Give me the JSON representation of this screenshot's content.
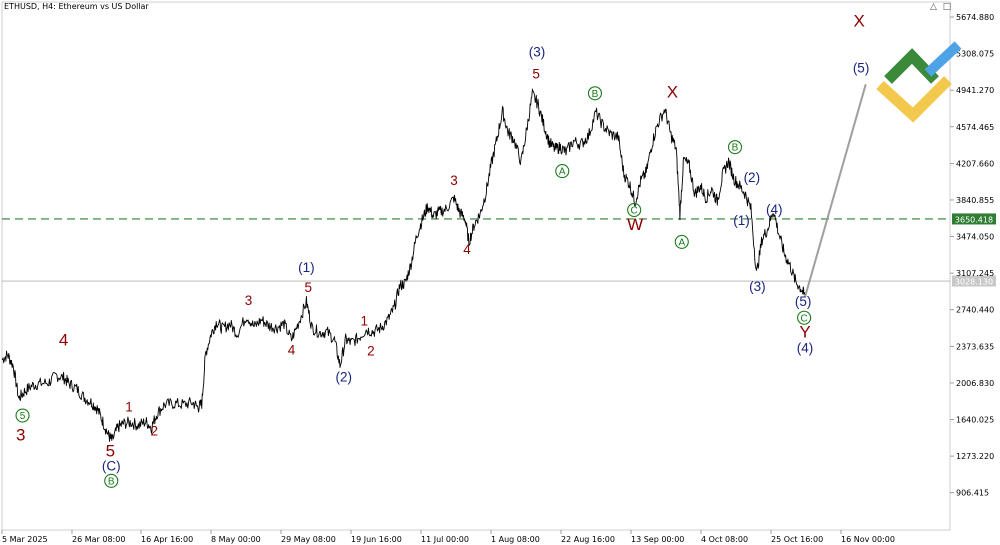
{
  "header": {
    "symbol_label": "ETHUSD, H4:  Ethereum vs US Dollar"
  },
  "corner_icons": [
    "graduation-cap-icon",
    "trading-icon"
  ],
  "colors": {
    "wave_red": "#8b0000",
    "wave_blue": "#1a237e",
    "wave_green": "#1b7a1b",
    "hline_green": "#2e7d32",
    "hline_gray": "#b0b0b0",
    "projection": "#9e9e9e",
    "logo_green": "#3a8a3a",
    "logo_yellow": "#f2c94c",
    "logo_blue": "#4da3e6"
  },
  "chart_data": {
    "type": "line",
    "price_axis": {
      "ticks": [
        5674.88,
        5308.075,
        4941.27,
        4574.465,
        4207.66,
        3840.855,
        3474.05,
        3107.245,
        2740.44,
        2373.635,
        2006.83,
        1640.025,
        1273.22,
        906.415
      ],
      "tick_labels": [
        "5674.880",
        "5308.075",
        "4941.270",
        "4574.465",
        "4207.660",
        "3840.855",
        "3474.050",
        "3107.245",
        "2740.440",
        "2373.635",
        "2006.830",
        "1640.025",
        "1273.220",
        "906.415"
      ],
      "range": [
        700,
        5800
      ]
    },
    "time_axis": {
      "tick_labels": [
        "5 Mar 2025",
        "26 Mar 08:00",
        "16 Apr 16:00",
        "8 May 00:00",
        "29 May 08:00",
        "19 Jun 16:00",
        "11 Jul 00:00",
        "1 Aug 08:00",
        "22 Aug 16:00",
        "13 Sep 00:00",
        "4 Oct 08:00",
        "25 Oct 16:00",
        "16 Nov 00:00"
      ]
    },
    "horizontal_lines": [
      {
        "price": 3650.418,
        "label": "3650.418",
        "style": "dashed",
        "color": "#2e7d32"
      },
      {
        "price": 3028.13,
        "label": "3028.130",
        "style": "solid",
        "color": "#b0b0b0"
      }
    ],
    "projection": {
      "from": {
        "t": 0.86,
        "price": 2870
      },
      "to": {
        "t": 0.925,
        "price": 5000
      }
    },
    "series": [
      {
        "values": [
          [
            0.0,
            2240
          ],
          [
            0.006,
            2290
          ],
          [
            0.012,
            2180
          ],
          [
            0.018,
            1850
          ],
          [
            0.024,
            1920
          ],
          [
            0.032,
            1980
          ],
          [
            0.04,
            2000
          ],
          [
            0.05,
            2010
          ],
          [
            0.058,
            2080
          ],
          [
            0.066,
            2060
          ],
          [
            0.072,
            2000
          ],
          [
            0.08,
            1950
          ],
          [
            0.088,
            1860
          ],
          [
            0.096,
            1810
          ],
          [
            0.102,
            1750
          ],
          [
            0.108,
            1620
          ],
          [
            0.114,
            1480
          ],
          [
            0.118,
            1430
          ],
          [
            0.124,
            1560
          ],
          [
            0.13,
            1600
          ],
          [
            0.138,
            1610
          ],
          [
            0.146,
            1580
          ],
          [
            0.154,
            1620
          ],
          [
            0.16,
            1560
          ],
          [
            0.166,
            1700
          ],
          [
            0.174,
            1790
          ],
          [
            0.184,
            1800
          ],
          [
            0.194,
            1790
          ],
          [
            0.204,
            1810
          ],
          [
            0.21,
            1760
          ],
          [
            0.214,
            1800
          ],
          [
            0.218,
            2300
          ],
          [
            0.224,
            2500
          ],
          [
            0.23,
            2620
          ],
          [
            0.236,
            2550
          ],
          [
            0.244,
            2600
          ],
          [
            0.252,
            2500
          ],
          [
            0.262,
            2680
          ],
          [
            0.27,
            2570
          ],
          [
            0.278,
            2640
          ],
          [
            0.286,
            2580
          ],
          [
            0.294,
            2560
          ],
          [
            0.302,
            2600
          ],
          [
            0.31,
            2440
          ],
          [
            0.318,
            2620
          ],
          [
            0.326,
            2820
          ],
          [
            0.332,
            2560
          ],
          [
            0.34,
            2510
          ],
          [
            0.348,
            2520
          ],
          [
            0.356,
            2440
          ],
          [
            0.362,
            2180
          ],
          [
            0.368,
            2440
          ],
          [
            0.374,
            2410
          ],
          [
            0.382,
            2460
          ],
          [
            0.39,
            2540
          ],
          [
            0.398,
            2520
          ],
          [
            0.406,
            2560
          ],
          [
            0.414,
            2650
          ],
          [
            0.42,
            2760
          ],
          [
            0.426,
            2980
          ],
          [
            0.432,
            3010
          ],
          [
            0.438,
            3200
          ],
          [
            0.444,
            3480
          ],
          [
            0.45,
            3640
          ],
          [
            0.456,
            3780
          ],
          [
            0.462,
            3680
          ],
          [
            0.468,
            3720
          ],
          [
            0.476,
            3750
          ],
          [
            0.484,
            3860
          ],
          [
            0.49,
            3720
          ],
          [
            0.496,
            3650
          ],
          [
            0.5,
            3420
          ],
          [
            0.506,
            3600
          ],
          [
            0.512,
            3700
          ],
          [
            0.518,
            3900
          ],
          [
            0.524,
            4200
          ],
          [
            0.53,
            4450
          ],
          [
            0.536,
            4730
          ],
          [
            0.542,
            4520
          ],
          [
            0.548,
            4450
          ],
          [
            0.556,
            4220
          ],
          [
            0.562,
            4550
          ],
          [
            0.568,
            4900
          ],
          [
            0.574,
            4800
          ],
          [
            0.58,
            4600
          ],
          [
            0.586,
            4420
          ],
          [
            0.592,
            4350
          ],
          [
            0.598,
            4370
          ],
          [
            0.604,
            4320
          ],
          [
            0.612,
            4430
          ],
          [
            0.62,
            4400
          ],
          [
            0.628,
            4480
          ],
          [
            0.636,
            4720
          ],
          [
            0.644,
            4580
          ],
          [
            0.652,
            4500
          ],
          [
            0.66,
            4470
          ],
          [
            0.666,
            4100
          ],
          [
            0.672,
            4000
          ],
          [
            0.678,
            3820
          ],
          [
            0.684,
            4030
          ],
          [
            0.69,
            4120
          ],
          [
            0.696,
            4400
          ],
          [
            0.702,
            4600
          ],
          [
            0.71,
            4750
          ],
          [
            0.716,
            4500
          ],
          [
            0.722,
            4350
          ],
          [
            0.726,
            3700
          ],
          [
            0.73,
            4250
          ],
          [
            0.736,
            4180
          ],
          [
            0.742,
            3900
          ],
          [
            0.748,
            3980
          ],
          [
            0.754,
            3860
          ],
          [
            0.76,
            3950
          ],
          [
            0.766,
            3830
          ],
          [
            0.772,
            4100
          ],
          [
            0.778,
            4230
          ],
          [
            0.784,
            4050
          ],
          [
            0.79,
            3980
          ],
          [
            0.796,
            3900
          ],
          [
            0.802,
            3750
          ],
          [
            0.808,
            3100
          ],
          [
            0.814,
            3450
          ],
          [
            0.82,
            3550
          ],
          [
            0.826,
            3740
          ],
          [
            0.832,
            3500
          ],
          [
            0.838,
            3300
          ],
          [
            0.844,
            3180
          ],
          [
            0.85,
            3020
          ],
          [
            0.856,
            2950
          ],
          [
            0.86,
            2870
          ]
        ]
      }
    ],
    "wave_labels": [
      {
        "text": "3",
        "t": 0.02,
        "price": 1430,
        "color": "red",
        "kind": "plain",
        "size": "big"
      },
      {
        "text": "5",
        "t": 0.022,
        "price": 1640,
        "color": "green",
        "kind": "circle"
      },
      {
        "text": "4",
        "t": 0.066,
        "price": 2380,
        "color": "red",
        "kind": "plain",
        "size": "big"
      },
      {
        "text": "1",
        "t": 0.136,
        "price": 1720,
        "color": "red",
        "kind": "plain"
      },
      {
        "text": "5",
        "t": 0.116,
        "price": 1270,
        "color": "red",
        "kind": "plain",
        "size": "big"
      },
      {
        "text": "(C)",
        "t": 0.117,
        "price": 1130,
        "color": "blue",
        "kind": "plain"
      },
      {
        "text": "B",
        "t": 0.117,
        "price": 985,
        "color": "green",
        "kind": "circle"
      },
      {
        "text": "2",
        "t": 0.163,
        "price": 1480,
        "color": "red",
        "kind": "plain"
      },
      {
        "text": "3",
        "t": 0.264,
        "price": 2790,
        "color": "red",
        "kind": "plain"
      },
      {
        "text": "(1)",
        "t": 0.326,
        "price": 3120,
        "color": "blue",
        "kind": "plain"
      },
      {
        "text": "5",
        "t": 0.328,
        "price": 2920,
        "color": "red",
        "kind": "plain"
      },
      {
        "text": "4",
        "t": 0.31,
        "price": 2290,
        "color": "red",
        "kind": "plain"
      },
      {
        "text": "1",
        "t": 0.388,
        "price": 2580,
        "color": "red",
        "kind": "plain"
      },
      {
        "text": "2",
        "t": 0.395,
        "price": 2280,
        "color": "red",
        "kind": "plain"
      },
      {
        "text": "(2)",
        "t": 0.366,
        "price": 2020,
        "color": "blue",
        "kind": "plain"
      },
      {
        "text": "3",
        "t": 0.484,
        "price": 3990,
        "color": "red",
        "kind": "plain"
      },
      {
        "text": "4",
        "t": 0.498,
        "price": 3300,
        "color": "red",
        "kind": "plain"
      },
      {
        "text": "(3)",
        "t": 0.573,
        "price": 5280,
        "color": "blue",
        "kind": "plain"
      },
      {
        "text": "5",
        "t": 0.572,
        "price": 5060,
        "color": "red",
        "kind": "plain"
      },
      {
        "text": "A",
        "t": 0.6,
        "price": 4090,
        "color": "green",
        "kind": "circle"
      },
      {
        "text": "B",
        "t": 0.635,
        "price": 4870,
        "color": "green",
        "kind": "circle"
      },
      {
        "text": "C",
        "t": 0.677,
        "price": 3700,
        "color": "green",
        "kind": "circle"
      },
      {
        "text": "W",
        "t": 0.678,
        "price": 3540,
        "color": "red",
        "kind": "plain",
        "size": "big"
      },
      {
        "text": "X",
        "t": 0.718,
        "price": 4870,
        "color": "red",
        "kind": "plain",
        "size": "big"
      },
      {
        "text": "A",
        "t": 0.728,
        "price": 3380,
        "color": "green",
        "kind": "circle"
      },
      {
        "text": "B",
        "t": 0.785,
        "price": 4330,
        "color": "green",
        "kind": "circle"
      },
      {
        "text": "(2)",
        "t": 0.803,
        "price": 4020,
        "color": "blue",
        "kind": "plain"
      },
      {
        "text": "(1)",
        "t": 0.792,
        "price": 3590,
        "color": "blue",
        "kind": "plain"
      },
      {
        "text": "(4)",
        "t": 0.827,
        "price": 3700,
        "color": "blue",
        "kind": "plain"
      },
      {
        "text": "(3)",
        "t": 0.809,
        "price": 2930,
        "color": "blue",
        "kind": "plain"
      },
      {
        "text": "(5)",
        "t": 0.858,
        "price": 2780,
        "color": "blue",
        "kind": "plain"
      },
      {
        "text": "C",
        "t": 0.859,
        "price": 2620,
        "color": "green",
        "kind": "circle"
      },
      {
        "text": "Y",
        "t": 0.86,
        "price": 2460,
        "color": "red",
        "kind": "plain",
        "size": "big"
      },
      {
        "text": "(4)",
        "t": 0.86,
        "price": 2310,
        "color": "blue",
        "kind": "plain"
      },
      {
        "text": "X",
        "t": 0.918,
        "price": 5580,
        "color": "red",
        "kind": "plain",
        "size": "big"
      },
      {
        "text": "(5)",
        "t": 0.92,
        "price": 5120,
        "color": "blue",
        "kind": "plain"
      }
    ]
  }
}
